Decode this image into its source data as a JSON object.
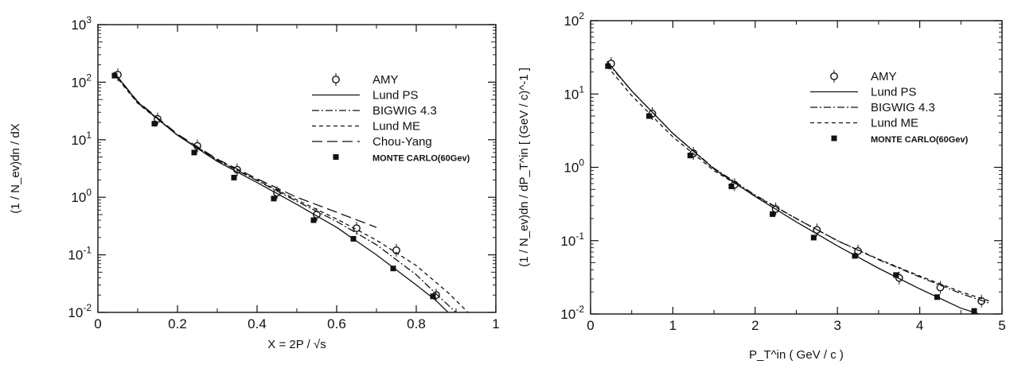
{
  "chart_data": [
    {
      "type": "line",
      "xlabel": "X = 2P / √s",
      "ylabel": "(1 / N_ev)dn / dX",
      "xlim": [
        0,
        1
      ],
      "ylim": [
        0.01,
        1000
      ],
      "yscale": "log",
      "grid": false,
      "legend_position": "top-right",
      "x_ticks": [
        0,
        0.2,
        0.4,
        0.6,
        0.8,
        1
      ],
      "x_tick_labels": [
        "0",
        "0.2",
        "0.4",
        "0.6",
        "0.8",
        "1"
      ],
      "y_ticks": [
        0.01,
        0.1,
        1,
        10,
        100,
        1000
      ],
      "y_tick_exponents": [
        "-2",
        "-1",
        "0",
        "1",
        "2",
        "3"
      ],
      "series": [
        {
          "name": "AMY",
          "style": "open-circle",
          "x": [
            0.05,
            0.15,
            0.25,
            0.35,
            0.45,
            0.55,
            0.65,
            0.75,
            0.85
          ],
          "y": [
            135,
            23,
            7.8,
            3.0,
            1.2,
            0.5,
            0.29,
            0.12,
            0.02
          ]
        },
        {
          "name": "Lund PS",
          "style": "solid",
          "x": [
            0.04,
            0.1,
            0.2,
            0.3,
            0.4,
            0.5,
            0.6,
            0.7,
            0.8,
            0.85,
            0.88
          ],
          "y": [
            150,
            45,
            12,
            4.2,
            1.8,
            0.75,
            0.3,
            0.1,
            0.03,
            0.016,
            0.01
          ]
        },
        {
          "name": "BIGWIG 4.3",
          "style": "dash-dot",
          "x": [
            0.04,
            0.1,
            0.2,
            0.3,
            0.4,
            0.5,
            0.6,
            0.7,
            0.8,
            0.86,
            0.9
          ],
          "y": [
            145,
            44,
            12,
            4.4,
            1.95,
            0.85,
            0.38,
            0.15,
            0.045,
            0.018,
            0.01
          ]
        },
        {
          "name": "Lund ME",
          "style": "dashed",
          "x": [
            0.04,
            0.1,
            0.2,
            0.3,
            0.4,
            0.5,
            0.6,
            0.7,
            0.8,
            0.88,
            0.93
          ],
          "y": [
            140,
            43,
            12,
            4.5,
            2.0,
            0.9,
            0.42,
            0.18,
            0.065,
            0.022,
            0.01
          ]
        },
        {
          "name": "Chou-Yang",
          "style": "long-dash",
          "x": [
            0.04,
            0.1,
            0.2,
            0.3,
            0.4,
            0.5,
            0.6,
            0.7
          ],
          "y": [
            150,
            46,
            12.5,
            4.6,
            2.1,
            1.0,
            0.55,
            0.3
          ]
        },
        {
          "name": "MONTE CARLO(60Gev)",
          "style": "filled-square",
          "x": [
            0.05,
            0.15,
            0.25,
            0.35,
            0.45,
            0.55,
            0.65,
            0.75,
            0.85
          ],
          "y": [
            130,
            19,
            6.0,
            2.2,
            0.95,
            0.4,
            0.19,
            0.058,
            0.019
          ]
        }
      ]
    },
    {
      "type": "line",
      "xlabel": "P_T^in   ( GeV / c )",
      "ylabel": "(1 / N_ev)dn / dP_T^in   [ (GeV / c)^-1 ]",
      "xlim": [
        0,
        5
      ],
      "ylim": [
        0.01,
        100
      ],
      "yscale": "log",
      "grid": false,
      "legend_position": "top-right",
      "x_ticks": [
        0,
        1,
        2,
        3,
        4,
        5
      ],
      "x_tick_labels": [
        "0",
        "1",
        "2",
        "3",
        "4",
        "5"
      ],
      "y_ticks": [
        0.01,
        0.1,
        1,
        10,
        100
      ],
      "y_tick_exponents": [
        "-2",
        "-1",
        "0",
        "1",
        "2"
      ],
      "series": [
        {
          "name": "AMY",
          "style": "open-circle",
          "x": [
            0.25,
            0.75,
            1.25,
            1.75,
            2.25,
            2.75,
            3.25,
            3.75,
            4.25,
            4.75
          ],
          "y": [
            26,
            5.4,
            1.55,
            0.58,
            0.27,
            0.14,
            0.072,
            0.031,
            0.023,
            0.015
          ]
        },
        {
          "name": "Lund PS",
          "style": "solid",
          "x": [
            0.2,
            0.5,
            1.0,
            1.5,
            2.0,
            2.5,
            3.0,
            3.5,
            4.0,
            4.5,
            4.85
          ],
          "y": [
            28,
            11,
            2.9,
            0.95,
            0.4,
            0.18,
            0.085,
            0.042,
            0.022,
            0.012,
            0.009
          ]
        },
        {
          "name": "BIGWIG 4.3",
          "style": "dash-dot",
          "x": [
            0.2,
            0.5,
            1.0,
            1.5,
            2.0,
            2.5,
            3.0,
            3.5,
            4.0,
            4.5,
            4.85
          ],
          "y": [
            27,
            11,
            2.9,
            0.97,
            0.42,
            0.2,
            0.1,
            0.055,
            0.032,
            0.019,
            0.014
          ]
        },
        {
          "name": "Lund ME",
          "style": "dashed",
          "x": [
            0.2,
            0.5,
            1.0,
            1.5,
            2.0,
            2.5,
            3.0,
            3.5,
            4.0,
            4.5,
            4.85
          ],
          "y": [
            24,
            9.5,
            2.6,
            0.9,
            0.41,
            0.2,
            0.1,
            0.056,
            0.033,
            0.02,
            0.015
          ]
        },
        {
          "name": "MONTE CARLO(60Gev)",
          "style": "filled-square",
          "x": [
            0.25,
            0.75,
            1.25,
            1.75,
            2.25,
            2.75,
            3.25,
            3.75,
            4.25,
            4.7
          ],
          "y": [
            24,
            5.0,
            1.45,
            0.55,
            0.23,
            0.11,
            0.062,
            0.034,
            0.017,
            0.011
          ]
        }
      ]
    }
  ]
}
